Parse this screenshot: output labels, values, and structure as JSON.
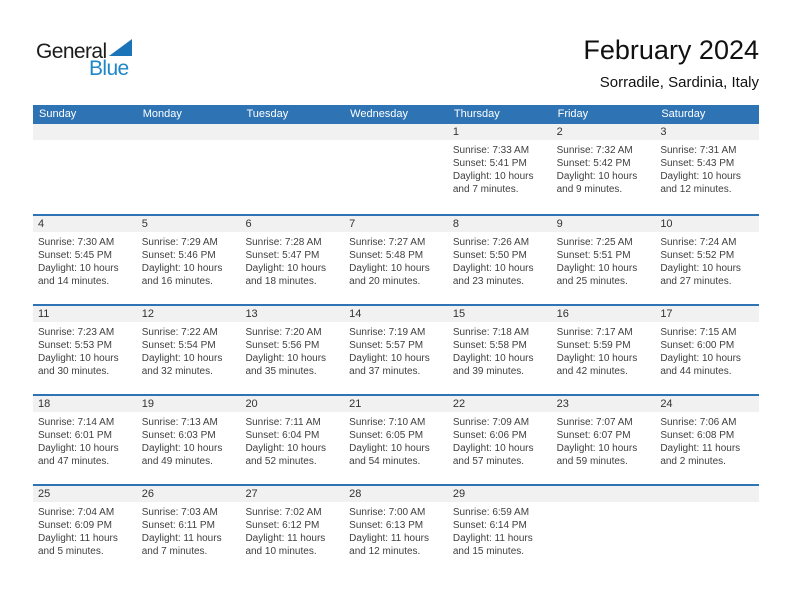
{
  "logo": {
    "part1": "General",
    "part2": "Blue"
  },
  "header": {
    "title": "February 2024",
    "subtitle": "Sorradile, Sardinia, Italy"
  },
  "colors": {
    "header_blue": "#2E74B5",
    "week_separator_blue": "#2E74B5",
    "day_band_gray": "#F1F1F1",
    "logo_text_blue": "#1E87C9",
    "logo_triangle_blue": "#1B74B8"
  },
  "weekdays": [
    "Sunday",
    "Monday",
    "Tuesday",
    "Wednesday",
    "Thursday",
    "Friday",
    "Saturday"
  ],
  "weeks": [
    {
      "cells": [
        {
          "day": "",
          "sunrise": "",
          "sunset": "",
          "daylight_line1": "",
          "daylight_line2": ""
        },
        {
          "day": "",
          "sunrise": "",
          "sunset": "",
          "daylight_line1": "",
          "daylight_line2": ""
        },
        {
          "day": "",
          "sunrise": "",
          "sunset": "",
          "daylight_line1": "",
          "daylight_line2": ""
        },
        {
          "day": "",
          "sunrise": "",
          "sunset": "",
          "daylight_line1": "",
          "daylight_line2": ""
        },
        {
          "day": "1",
          "sunrise": "Sunrise: 7:33 AM",
          "sunset": "Sunset: 5:41 PM",
          "daylight_line1": "Daylight: 10 hours",
          "daylight_line2": "and 7 minutes."
        },
        {
          "day": "2",
          "sunrise": "Sunrise: 7:32 AM",
          "sunset": "Sunset: 5:42 PM",
          "daylight_line1": "Daylight: 10 hours",
          "daylight_line2": "and 9 minutes."
        },
        {
          "day": "3",
          "sunrise": "Sunrise: 7:31 AM",
          "sunset": "Sunset: 5:43 PM",
          "daylight_line1": "Daylight: 10 hours",
          "daylight_line2": "and 12 minutes."
        }
      ]
    },
    {
      "cells": [
        {
          "day": "4",
          "sunrise": "Sunrise: 7:30 AM",
          "sunset": "Sunset: 5:45 PM",
          "daylight_line1": "Daylight: 10 hours",
          "daylight_line2": "and 14 minutes."
        },
        {
          "day": "5",
          "sunrise": "Sunrise: 7:29 AM",
          "sunset": "Sunset: 5:46 PM",
          "daylight_line1": "Daylight: 10 hours",
          "daylight_line2": "and 16 minutes."
        },
        {
          "day": "6",
          "sunrise": "Sunrise: 7:28 AM",
          "sunset": "Sunset: 5:47 PM",
          "daylight_line1": "Daylight: 10 hours",
          "daylight_line2": "and 18 minutes."
        },
        {
          "day": "7",
          "sunrise": "Sunrise: 7:27 AM",
          "sunset": "Sunset: 5:48 PM",
          "daylight_line1": "Daylight: 10 hours",
          "daylight_line2": "and 20 minutes."
        },
        {
          "day": "8",
          "sunrise": "Sunrise: 7:26 AM",
          "sunset": "Sunset: 5:50 PM",
          "daylight_line1": "Daylight: 10 hours",
          "daylight_line2": "and 23 minutes."
        },
        {
          "day": "9",
          "sunrise": "Sunrise: 7:25 AM",
          "sunset": "Sunset: 5:51 PM",
          "daylight_line1": "Daylight: 10 hours",
          "daylight_line2": "and 25 minutes."
        },
        {
          "day": "10",
          "sunrise": "Sunrise: 7:24 AM",
          "sunset": "Sunset: 5:52 PM",
          "daylight_line1": "Daylight: 10 hours",
          "daylight_line2": "and 27 minutes."
        }
      ]
    },
    {
      "cells": [
        {
          "day": "11",
          "sunrise": "Sunrise: 7:23 AM",
          "sunset": "Sunset: 5:53 PM",
          "daylight_line1": "Daylight: 10 hours",
          "daylight_line2": "and 30 minutes."
        },
        {
          "day": "12",
          "sunrise": "Sunrise: 7:22 AM",
          "sunset": "Sunset: 5:54 PM",
          "daylight_line1": "Daylight: 10 hours",
          "daylight_line2": "and 32 minutes."
        },
        {
          "day": "13",
          "sunrise": "Sunrise: 7:20 AM",
          "sunset": "Sunset: 5:56 PM",
          "daylight_line1": "Daylight: 10 hours",
          "daylight_line2": "and 35 minutes."
        },
        {
          "day": "14",
          "sunrise": "Sunrise: 7:19 AM",
          "sunset": "Sunset: 5:57 PM",
          "daylight_line1": "Daylight: 10 hours",
          "daylight_line2": "and 37 minutes."
        },
        {
          "day": "15",
          "sunrise": "Sunrise: 7:18 AM",
          "sunset": "Sunset: 5:58 PM",
          "daylight_line1": "Daylight: 10 hours",
          "daylight_line2": "and 39 minutes."
        },
        {
          "day": "16",
          "sunrise": "Sunrise: 7:17 AM",
          "sunset": "Sunset: 5:59 PM",
          "daylight_line1": "Daylight: 10 hours",
          "daylight_line2": "and 42 minutes."
        },
        {
          "day": "17",
          "sunrise": "Sunrise: 7:15 AM",
          "sunset": "Sunset: 6:00 PM",
          "daylight_line1": "Daylight: 10 hours",
          "daylight_line2": "and 44 minutes."
        }
      ]
    },
    {
      "cells": [
        {
          "day": "18",
          "sunrise": "Sunrise: 7:14 AM",
          "sunset": "Sunset: 6:01 PM",
          "daylight_line1": "Daylight: 10 hours",
          "daylight_line2": "and 47 minutes."
        },
        {
          "day": "19",
          "sunrise": "Sunrise: 7:13 AM",
          "sunset": "Sunset: 6:03 PM",
          "daylight_line1": "Daylight: 10 hours",
          "daylight_line2": "and 49 minutes."
        },
        {
          "day": "20",
          "sunrise": "Sunrise: 7:11 AM",
          "sunset": "Sunset: 6:04 PM",
          "daylight_line1": "Daylight: 10 hours",
          "daylight_line2": "and 52 minutes."
        },
        {
          "day": "21",
          "sunrise": "Sunrise: 7:10 AM",
          "sunset": "Sunset: 6:05 PM",
          "daylight_line1": "Daylight: 10 hours",
          "daylight_line2": "and 54 minutes."
        },
        {
          "day": "22",
          "sunrise": "Sunrise: 7:09 AM",
          "sunset": "Sunset: 6:06 PM",
          "daylight_line1": "Daylight: 10 hours",
          "daylight_line2": "and 57 minutes."
        },
        {
          "day": "23",
          "sunrise": "Sunrise: 7:07 AM",
          "sunset": "Sunset: 6:07 PM",
          "daylight_line1": "Daylight: 10 hours",
          "daylight_line2": "and 59 minutes."
        },
        {
          "day": "24",
          "sunrise": "Sunrise: 7:06 AM",
          "sunset": "Sunset: 6:08 PM",
          "daylight_line1": "Daylight: 11 hours",
          "daylight_line2": "and 2 minutes."
        }
      ]
    },
    {
      "cells": [
        {
          "day": "25",
          "sunrise": "Sunrise: 7:04 AM",
          "sunset": "Sunset: 6:09 PM",
          "daylight_line1": "Daylight: 11 hours",
          "daylight_line2": "and 5 minutes."
        },
        {
          "day": "26",
          "sunrise": "Sunrise: 7:03 AM",
          "sunset": "Sunset: 6:11 PM",
          "daylight_line1": "Daylight: 11 hours",
          "daylight_line2": "and 7 minutes."
        },
        {
          "day": "27",
          "sunrise": "Sunrise: 7:02 AM",
          "sunset": "Sunset: 6:12 PM",
          "daylight_line1": "Daylight: 11 hours",
          "daylight_line2": "and 10 minutes."
        },
        {
          "day": "28",
          "sunrise": "Sunrise: 7:00 AM",
          "sunset": "Sunset: 6:13 PM",
          "daylight_line1": "Daylight: 11 hours",
          "daylight_line2": "and 12 minutes."
        },
        {
          "day": "29",
          "sunrise": "Sunrise: 6:59 AM",
          "sunset": "Sunset: 6:14 PM",
          "daylight_line1": "Daylight: 11 hours",
          "daylight_line2": "and 15 minutes."
        },
        {
          "day": "",
          "sunrise": "",
          "sunset": "",
          "daylight_line1": "",
          "daylight_line2": ""
        },
        {
          "day": "",
          "sunrise": "",
          "sunset": "",
          "daylight_line1": "",
          "daylight_line2": ""
        }
      ]
    }
  ]
}
